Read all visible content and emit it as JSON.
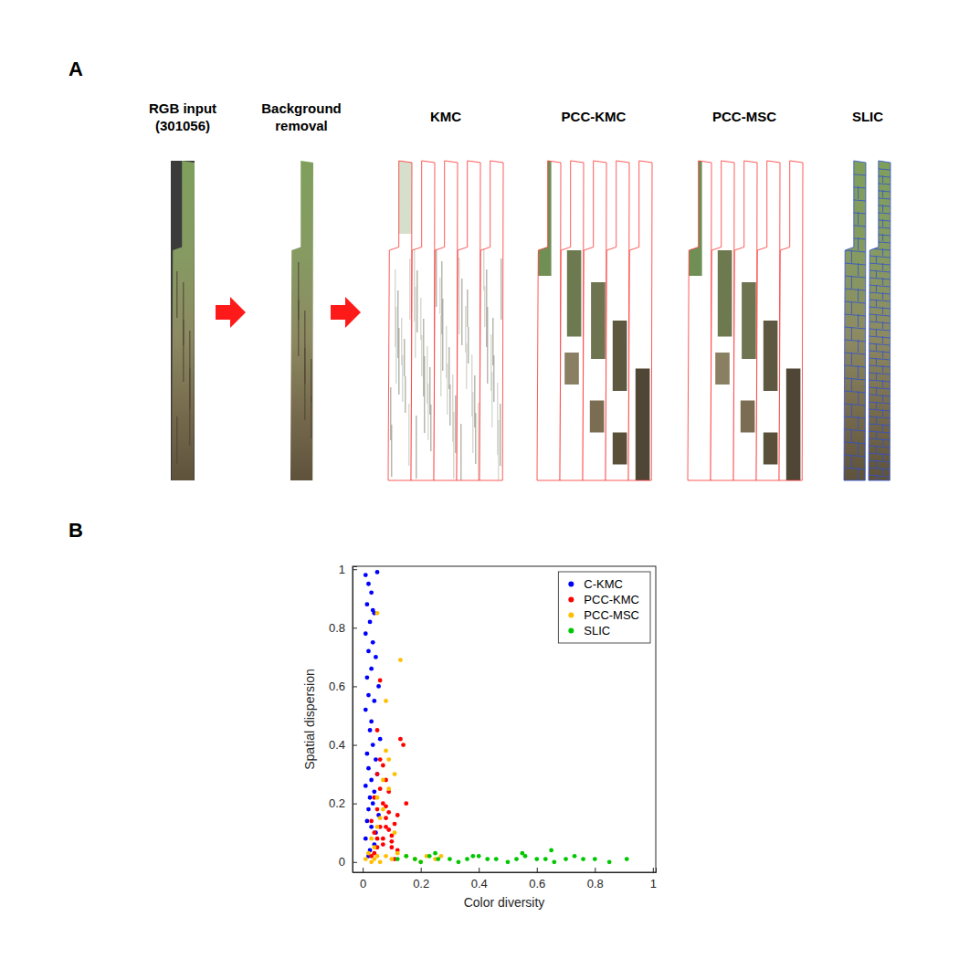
{
  "panel_labels": [
    "A",
    "B"
  ],
  "panel_a": {
    "columns": [
      "RGB input (301056)",
      "Background removal",
      "KMC",
      "PCC-KMC",
      "PCC-MSC",
      "SLIC"
    ]
  },
  "chart_data": {
    "type": "scatter",
    "x_label": "Color diversity",
    "y_label": "Spatial dispersion",
    "xlim": [
      -0.035,
      1.01
    ],
    "ylim": [
      -0.035,
      1.01
    ],
    "xticks": [
      0,
      0.2,
      0.4,
      0.6,
      0.8,
      1
    ],
    "yticks": [
      0,
      0.2,
      0.4,
      0.6,
      0.8,
      1
    ],
    "grid": false,
    "legend": "upper right",
    "marker": "circle",
    "series": [
      {
        "name": "C-KMC",
        "color": "#0000ff",
        "x": [
          0.01,
          0.02,
          0.03,
          0.015,
          0.04,
          0.025,
          0.05,
          0.01,
          0.035,
          0.02,
          0.045,
          0.03,
          0.015,
          0.055,
          0.02,
          0.04,
          0.01,
          0.03,
          0.025,
          0.06,
          0.035,
          0.015,
          0.045,
          0.02,
          0.05,
          0.03,
          0.01,
          0.04,
          0.025,
          0.035,
          0.02,
          0.055,
          0.015,
          0.03,
          0.045,
          0.01,
          0.04,
          0.025,
          0.02,
          0.035
        ],
        "values": [
          0.98,
          0.95,
          0.92,
          0.88,
          0.85,
          0.82,
          0.99,
          0.78,
          0.75,
          0.72,
          0.7,
          0.66,
          0.63,
          0.6,
          0.57,
          0.55,
          0.52,
          0.48,
          0.45,
          0.42,
          0.4,
          0.37,
          0.35,
          0.32,
          0.3,
          0.28,
          0.26,
          0.24,
          0.22,
          0.2,
          0.18,
          0.16,
          0.14,
          0.12,
          0.1,
          0.08,
          0.06,
          0.04,
          0.02,
          0.86
        ]
      },
      {
        "name": "PCC-KMC",
        "color": "#ff0000",
        "x": [
          0.03,
          0.05,
          0.07,
          0.04,
          0.06,
          0.08,
          0.1,
          0.12,
          0.05,
          0.07,
          0.09,
          0.04,
          0.06,
          0.11,
          0.13,
          0.08,
          0.05,
          0.03,
          0.07,
          0.09,
          0.06,
          0.1,
          0.14,
          0.04,
          0.08,
          0.12,
          0.06,
          0.05,
          0.09,
          0.07,
          0.15,
          0.11,
          0.08,
          0.05,
          0.1
        ],
        "values": [
          0.02,
          0.05,
          0.08,
          0.1,
          0.12,
          0.15,
          0.07,
          0.04,
          0.18,
          0.2,
          0.11,
          0.22,
          0.25,
          0.13,
          0.42,
          0.28,
          0.3,
          0.14,
          0.06,
          0.17,
          0.35,
          0.09,
          0.4,
          0.03,
          0.19,
          0.16,
          0.62,
          0.45,
          0.24,
          0.33,
          0.2,
          0.01,
          0.12,
          0.08,
          0.05
        ]
      },
      {
        "name": "PCC-MSC",
        "color": "#ffbf00",
        "x": [
          0.01,
          0.03,
          0.05,
          0.02,
          0.04,
          0.06,
          0.08,
          0.1,
          0.12,
          0.15,
          0.18,
          0.2,
          0.22,
          0.25,
          0.27,
          0.03,
          0.05,
          0.07,
          0.09,
          0.11,
          0.04,
          0.06,
          0.08,
          0.05,
          0.13,
          0.05,
          0.07,
          0.09,
          0.11,
          0.08
        ],
        "values": [
          0.01,
          0.0,
          0.02,
          0.03,
          0.01,
          0.0,
          0.02,
          0.01,
          0.03,
          0.02,
          0.01,
          0.0,
          0.02,
          0.01,
          0.02,
          0.08,
          0.12,
          0.18,
          0.25,
          0.3,
          0.05,
          0.15,
          0.38,
          0.85,
          0.69,
          0.22,
          0.28,
          0.35,
          0.1,
          0.55
        ]
      },
      {
        "name": "SLIC",
        "color": "#00c800",
        "x": [
          0.12,
          0.15,
          0.18,
          0.2,
          0.23,
          0.26,
          0.3,
          0.33,
          0.36,
          0.4,
          0.43,
          0.46,
          0.5,
          0.53,
          0.56,
          0.6,
          0.63,
          0.66,
          0.7,
          0.73,
          0.76,
          0.8,
          0.85,
          0.91,
          0.65,
          0.25,
          0.38,
          0.55
        ],
        "values": [
          0.01,
          0.02,
          0.01,
          0.0,
          0.02,
          0.01,
          0.01,
          0.0,
          0.01,
          0.02,
          0.01,
          0.01,
          0.0,
          0.01,
          0.02,
          0.01,
          0.01,
          0.0,
          0.01,
          0.02,
          0.01,
          0.01,
          0.0,
          0.01,
          0.04,
          0.03,
          0.02,
          0.03
        ]
      }
    ]
  }
}
